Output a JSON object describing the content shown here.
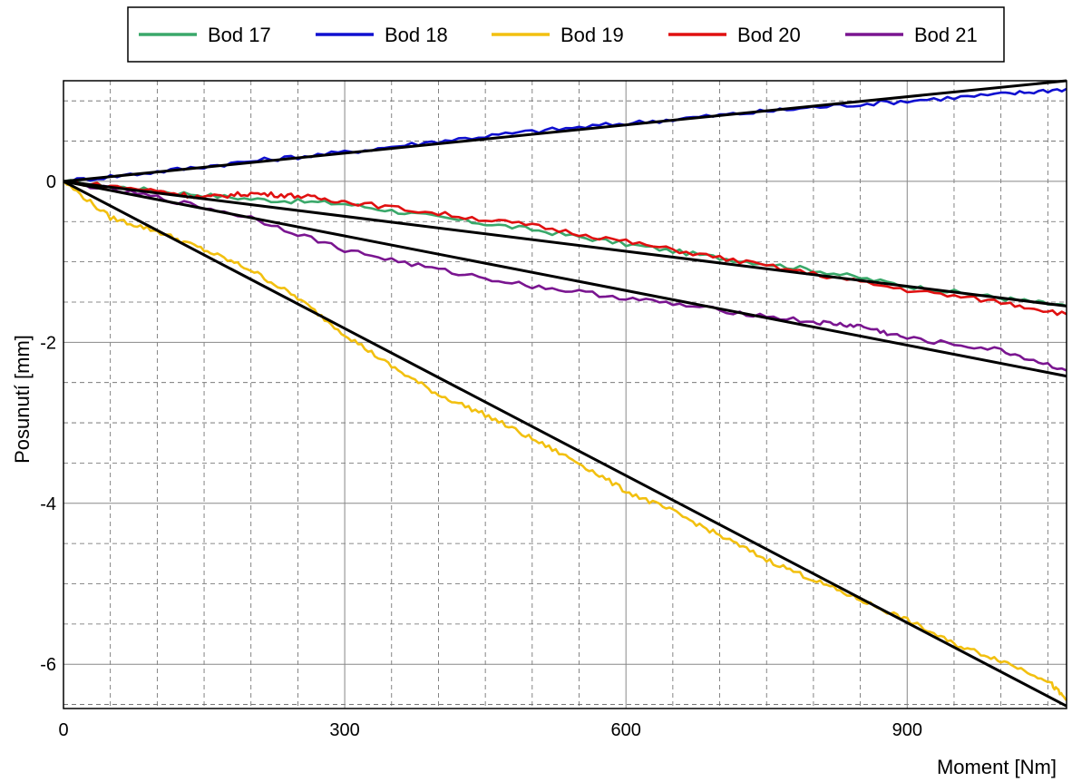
{
  "chart_data": {
    "type": "line",
    "xlabel": "Moment [Nm]",
    "ylabel": "Posunutí [mm]",
    "xlim": [
      0,
      1070
    ],
    "ylim": [
      -6.55,
      1.25
    ],
    "x_ticks": [
      0,
      300,
      600,
      900
    ],
    "x_tick_labels": [
      "0",
      "300",
      "600",
      "900"
    ],
    "y_ticks": [
      0,
      -2,
      -4,
      -6
    ],
    "y_tick_labels": [
      "0",
      "-2",
      "-4",
      "-6"
    ],
    "x_minor_step": 50,
    "y_minor_step": 0.5,
    "grid": true,
    "legend_position": "top",
    "series": [
      {
        "name": "Bod 17",
        "color": "#3aa86a",
        "x": [
          0,
          100,
          200,
          300,
          400,
          500,
          600,
          700,
          800,
          900,
          1000,
          1070
        ],
        "y": [
          0,
          -0.12,
          -0.22,
          -0.28,
          -0.45,
          -0.6,
          -0.78,
          -0.95,
          -1.1,
          -1.3,
          -1.45,
          -1.55
        ]
      },
      {
        "name": "Bod 18",
        "color": "#1010d0",
        "x": [
          0,
          100,
          200,
          300,
          400,
          500,
          600,
          700,
          800,
          900,
          1000,
          1070
        ],
        "y": [
          0,
          0.12,
          0.25,
          0.36,
          0.5,
          0.62,
          0.72,
          0.82,
          0.92,
          1.0,
          1.08,
          1.15
        ]
      },
      {
        "name": "Bod 19",
        "color": "#f2c010",
        "x": [
          0,
          50,
          100,
          150,
          200,
          250,
          300,
          350,
          400,
          450,
          500,
          550,
          600,
          650,
          700,
          750,
          800,
          850,
          900,
          950,
          1000,
          1050,
          1070
        ],
        "y": [
          0,
          -0.45,
          -0.62,
          -0.85,
          -1.1,
          -1.45,
          -1.9,
          -2.3,
          -2.65,
          -2.9,
          -3.2,
          -3.5,
          -3.85,
          -4.1,
          -4.4,
          -4.7,
          -4.95,
          -5.2,
          -5.45,
          -5.75,
          -5.95,
          -6.2,
          -6.45
        ]
      },
      {
        "name": "Bod 20",
        "color": "#e01010",
        "x": [
          0,
          100,
          150,
          200,
          250,
          300,
          400,
          500,
          600,
          700,
          800,
          900,
          1000,
          1070
        ],
        "y": [
          0,
          -0.12,
          -0.2,
          -0.15,
          -0.18,
          -0.25,
          -0.4,
          -0.55,
          -0.75,
          -0.95,
          -1.15,
          -1.35,
          -1.5,
          -1.65
        ]
      },
      {
        "name": "Bod 21",
        "color": "#7a1590",
        "x": [
          0,
          100,
          200,
          300,
          400,
          500,
          600,
          700,
          800,
          850,
          900,
          1000,
          1070
        ],
        "y": [
          0,
          -0.2,
          -0.45,
          -0.85,
          -1.1,
          -1.3,
          -1.45,
          -1.6,
          -1.75,
          -1.8,
          -1.95,
          -2.1,
          -2.35
        ]
      }
    ],
    "fit_lines": [
      {
        "color": "#000000",
        "x": [
          0,
          1070
        ],
        "y": [
          0,
          1.25
        ]
      },
      {
        "color": "#000000",
        "x": [
          0,
          1070
        ],
        "y": [
          0,
          -1.55
        ]
      },
      {
        "color": "#000000",
        "x": [
          0,
          1070
        ],
        "y": [
          0,
          -2.42
        ]
      },
      {
        "color": "#000000",
        "x": [
          0,
          1070
        ],
        "y": [
          0,
          -6.52
        ]
      }
    ]
  }
}
